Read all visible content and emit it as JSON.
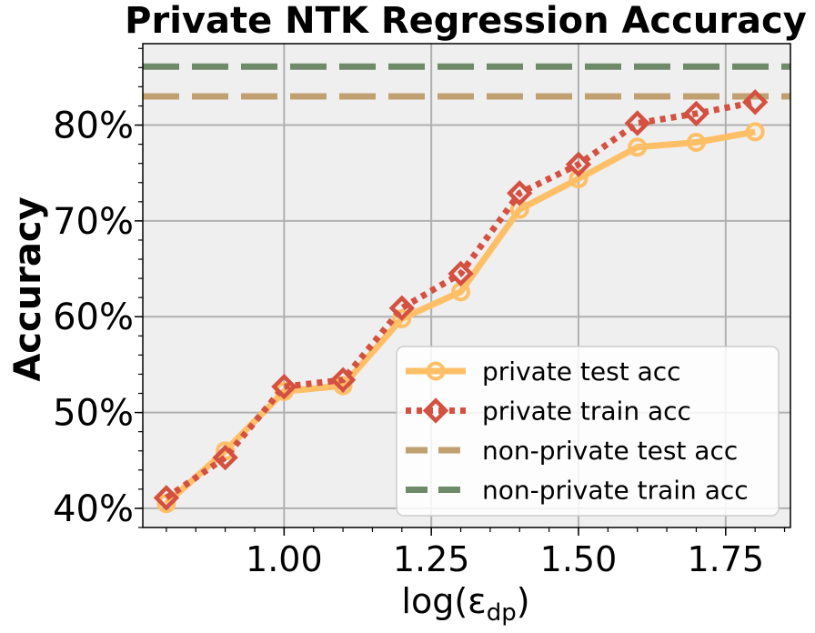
{
  "chart_data": {
    "type": "line",
    "title": "Private NTK Regression Accuracy",
    "xlabel": "log(ε",
    "xlabel_sub": "dp",
    "xlabel_close": ")",
    "ylabel": "Accuracy",
    "xlim": [
      0.76,
      1.86
    ],
    "ylim": [
      38.0,
      88.5
    ],
    "xticks": [
      1.0,
      1.25,
      1.5,
      1.75
    ],
    "xtick_labels": [
      "1.00",
      "1.25",
      "1.50",
      "1.75"
    ],
    "yticks": [
      40,
      50,
      60,
      70,
      80
    ],
    "ytick_labels": [
      "40%",
      "50%",
      "60%",
      "70%",
      "80%"
    ],
    "grid": true,
    "legend_position": "lower-right",
    "x": [
      0.8,
      0.9,
      1.0,
      1.1,
      1.2,
      1.3,
      1.4,
      1.5,
      1.6,
      1.7,
      1.8
    ],
    "series": [
      {
        "name": "private test acc",
        "values": [
          40.5,
          46.0,
          52.2,
          52.8,
          59.8,
          62.6,
          71.2,
          74.4,
          77.7,
          78.2,
          79.3
        ],
        "color": "#ffbf66",
        "style": "solid",
        "marker": "circle"
      },
      {
        "name": "private train acc",
        "values": [
          41.1,
          45.3,
          52.7,
          53.4,
          60.9,
          64.5,
          72.9,
          75.9,
          80.2,
          81.2,
          82.4
        ],
        "color": "#d45040",
        "style": "dotted",
        "marker": "diamond"
      }
    ],
    "reference_lines": [
      {
        "name": "non-private test acc",
        "value": 83.0,
        "color": "#c0a070",
        "style": "dashed"
      },
      {
        "name": "non-private train acc",
        "value": 86.1,
        "color": "#6e8a68",
        "style": "dashed"
      }
    ],
    "colors": {
      "plot_background": "#efefef",
      "grid": "#b0b0b0"
    }
  }
}
